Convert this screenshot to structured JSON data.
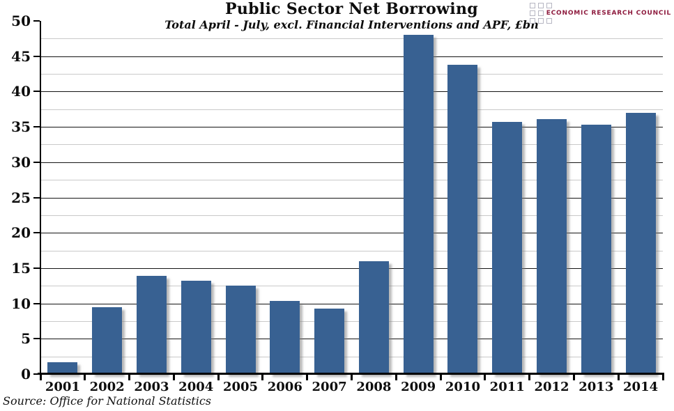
{
  "title": "Public Sector Net Borrowing",
  "subtitle": "Total April - July, excl. Financial Interventions and APF, £bn",
  "source": "Source: Office for National Statistics",
  "logo": {
    "text": "ECONOMIC RESEARCH COUNCIL",
    "square_rows": [
      3,
      2,
      3
    ],
    "text_color": "#8e1b3e"
  },
  "chart_data": {
    "type": "bar",
    "title": "Public Sector Net Borrowing",
    "subtitle": "Total April - July, excl. Financial Interventions and APF, £bn",
    "categories": [
      "2001",
      "2002",
      "2003",
      "2004",
      "2005",
      "2006",
      "2007",
      "2008",
      "2009",
      "2010",
      "2011",
      "2012",
      "2013",
      "2014"
    ],
    "values": [
      1.7,
      9.5,
      13.9,
      13.2,
      12.5,
      10.4,
      9.3,
      16.0,
      48.0,
      43.8,
      35.7,
      36.1,
      35.3,
      37.0
    ],
    "xlabel": "",
    "ylabel": "",
    "ylim": [
      0,
      50
    ],
    "ytick_step": 5,
    "yminor_step": 2.5,
    "grid": "horizontal, major black + minor light gray",
    "legend": "none",
    "bar_color": "#386192",
    "major_grid_color": "#141414",
    "minor_grid_color": "#c9c9c9",
    "source": "Source: Office for National Statistics"
  }
}
